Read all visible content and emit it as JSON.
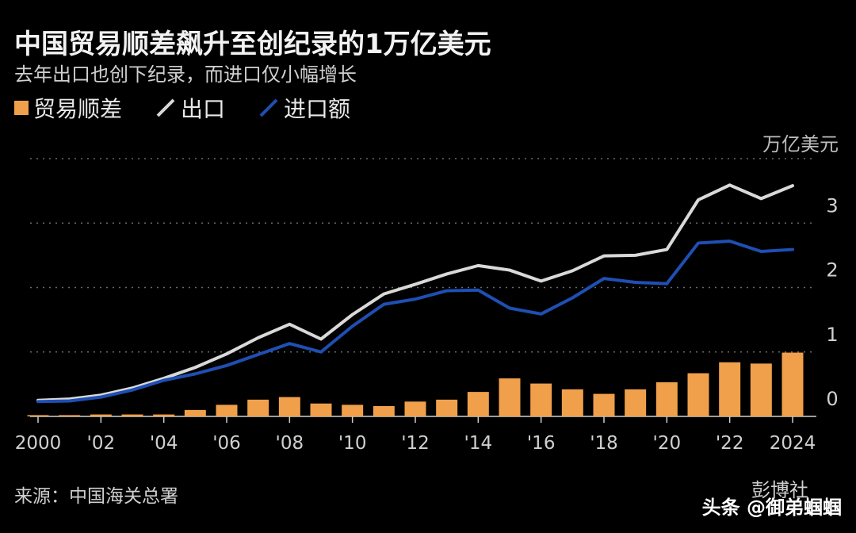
{
  "title": "中国贸易顺差飙升至创纪录的1万亿美元",
  "subtitle": "去年出口也创下纪录，而进口仅小幅增长",
  "unit_label": "万亿美元",
  "legend": [
    {
      "label": "贸易顺差",
      "kind": "bar",
      "color": "#f0a04b"
    },
    {
      "label": "出口",
      "kind": "line",
      "color": "#d9d9d9"
    },
    {
      "label": "进口额",
      "kind": "line",
      "color": "#1f4fb3"
    }
  ],
  "footer": {
    "source": "来源：中国海关总署",
    "brand": "彭博社",
    "watermark": "头条 @御弟蝈蝈"
  },
  "chart_data": {
    "type": "bar+line",
    "x": [
      2000,
      2001,
      2002,
      2003,
      2004,
      2005,
      2006,
      2007,
      2008,
      2009,
      2010,
      2011,
      2012,
      2013,
      2014,
      2015,
      2016,
      2017,
      2018,
      2019,
      2020,
      2021,
      2022,
      2023,
      2024
    ],
    "x_tick_labels": [
      "2000",
      "'02",
      "'04",
      "'06",
      "'08",
      "'10",
      "'12",
      "'14",
      "'16",
      "'18",
      "'20",
      "'22",
      "2024"
    ],
    "x_tick_values": [
      2000,
      2002,
      2004,
      2006,
      2008,
      2010,
      2012,
      2014,
      2016,
      2018,
      2020,
      2022,
      2024
    ],
    "y_ticks": [
      0,
      1,
      2,
      3
    ],
    "ylim": [
      0,
      4
    ],
    "grid": true,
    "series": [
      {
        "name": "贸易顺差",
        "type": "bar",
        "color": "#f0a04b",
        "values": [
          0.02,
          0.02,
          0.03,
          0.03,
          0.03,
          0.1,
          0.18,
          0.26,
          0.3,
          0.2,
          0.18,
          0.16,
          0.23,
          0.26,
          0.38,
          0.59,
          0.51,
          0.42,
          0.35,
          0.42,
          0.53,
          0.67,
          0.84,
          0.82,
          0.99
        ]
      },
      {
        "name": "出口",
        "type": "line",
        "color": "#d9d9d9",
        "values": [
          0.25,
          0.27,
          0.33,
          0.44,
          0.59,
          0.76,
          0.97,
          1.22,
          1.43,
          1.2,
          1.58,
          1.9,
          2.05,
          2.21,
          2.34,
          2.27,
          2.1,
          2.26,
          2.49,
          2.5,
          2.59,
          3.36,
          3.59,
          3.38,
          3.58
        ]
      },
      {
        "name": "进口额",
        "type": "line",
        "color": "#1f4fb3",
        "values": [
          0.23,
          0.24,
          0.3,
          0.41,
          0.56,
          0.66,
          0.79,
          0.96,
          1.13,
          1.0,
          1.4,
          1.74,
          1.82,
          1.95,
          1.96,
          1.68,
          1.59,
          1.84,
          2.14,
          2.08,
          2.06,
          2.69,
          2.72,
          2.56,
          2.59
        ]
      }
    ]
  }
}
